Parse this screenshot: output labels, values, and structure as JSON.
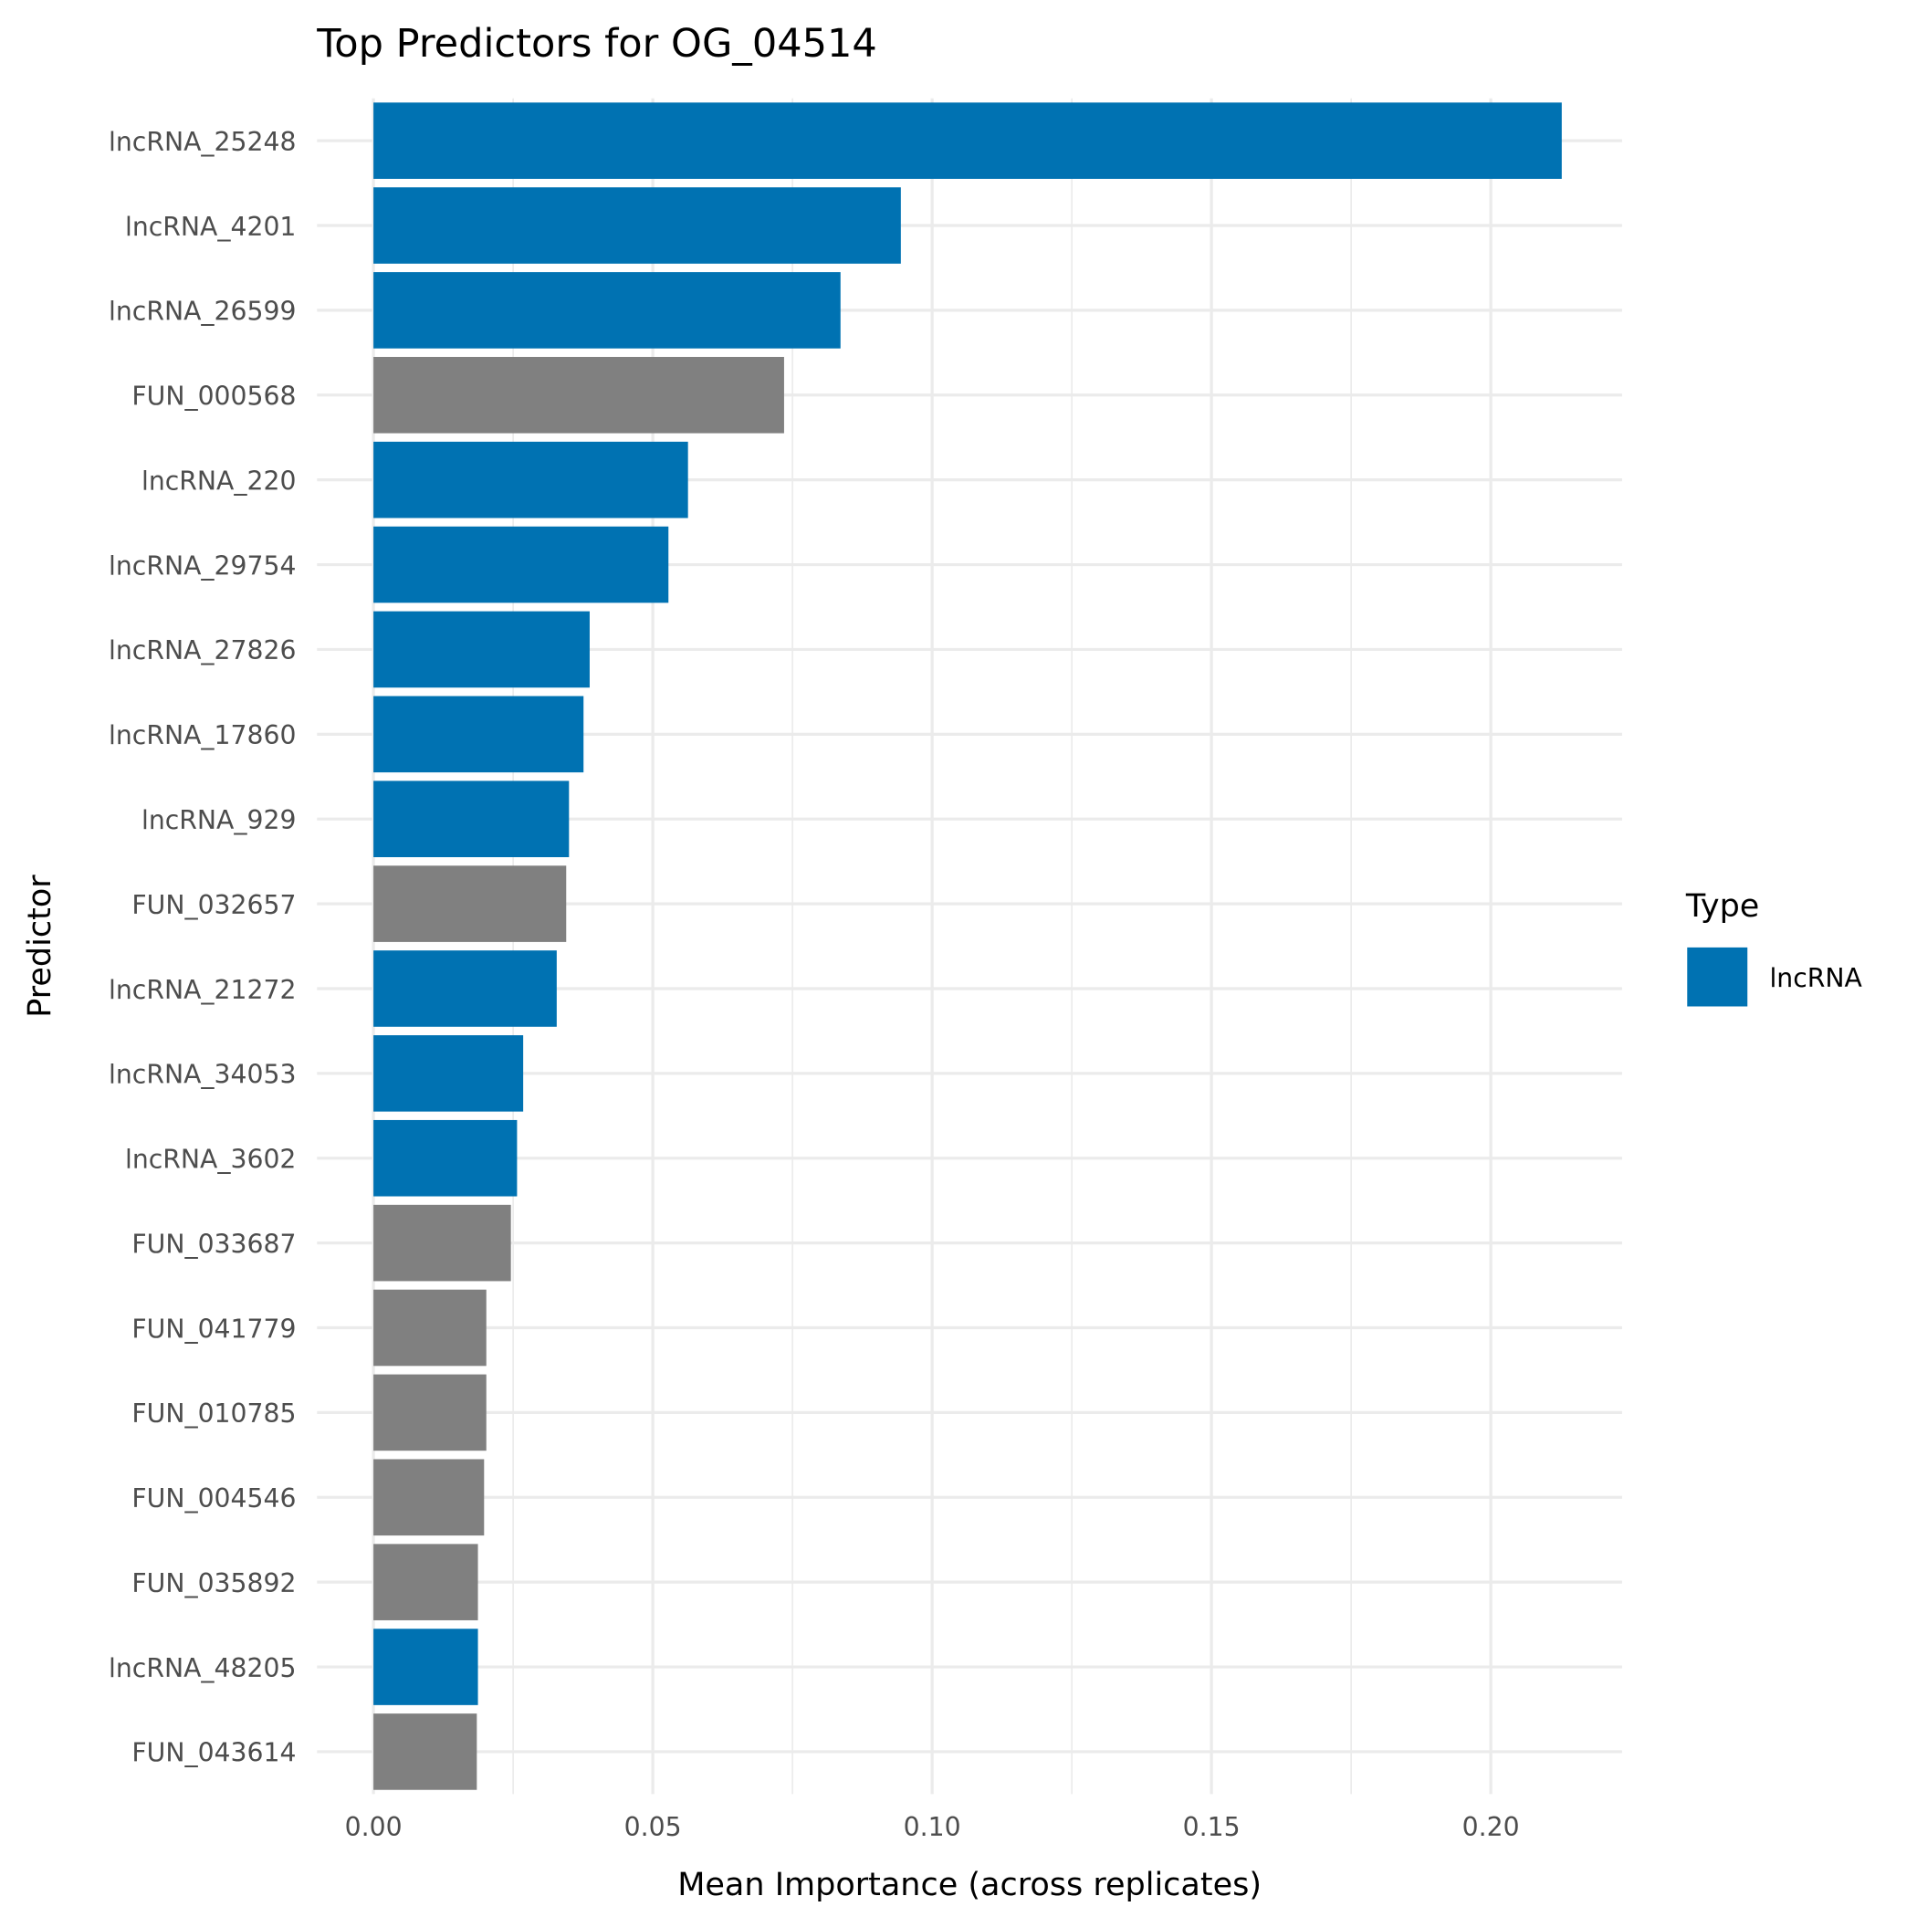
{
  "chart_data": {
    "type": "bar",
    "orientation": "horizontal",
    "title": "Top Predictors for OG_04514",
    "xlabel": "Mean Importance (across replicates)",
    "ylabel": "Predictor",
    "xlim": [
      -0.0101,
      0.2235
    ],
    "xticks": [
      "0.00",
      "0.05",
      "0.10",
      "0.15",
      "0.20"
    ],
    "xtick_values": [
      0,
      0.05,
      0.1,
      0.15,
      0.2
    ],
    "grid": true,
    "legend": {
      "title": "Type",
      "position": "right",
      "entries": [
        {
          "label": "lncRNA",
          "color": "#0072B2"
        }
      ]
    },
    "colors": {
      "lncRNA": "#0072B2",
      "other": "#808080"
    },
    "categories": [
      "lncRNA_25248",
      "lncRNA_4201",
      "lncRNA_26599",
      "FUN_000568",
      "lncRNA_220",
      "lncRNA_29754",
      "lncRNA_27826",
      "lncRNA_17860",
      "lncRNA_929",
      "FUN_032657",
      "lncRNA_21272",
      "lncRNA_34053",
      "lncRNA_3602",
      "FUN_033687",
      "FUN_041779",
      "FUN_010785",
      "FUN_004546",
      "FUN_035892",
      "lncRNA_48205",
      "FUN_043614"
    ],
    "values": [
      0.2127,
      0.0944,
      0.0836,
      0.0735,
      0.0563,
      0.0528,
      0.0387,
      0.0376,
      0.035,
      0.0345,
      0.0328,
      0.0268,
      0.0257,
      0.0246,
      0.0202,
      0.0202,
      0.0198,
      0.0187,
      0.0187,
      0.0185
    ],
    "types": [
      "lncRNA",
      "lncRNA",
      "lncRNA",
      "other",
      "lncRNA",
      "lncRNA",
      "lncRNA",
      "lncRNA",
      "lncRNA",
      "other",
      "lncRNA",
      "lncRNA",
      "lncRNA",
      "other",
      "other",
      "other",
      "other",
      "other",
      "lncRNA",
      "other"
    ]
  }
}
